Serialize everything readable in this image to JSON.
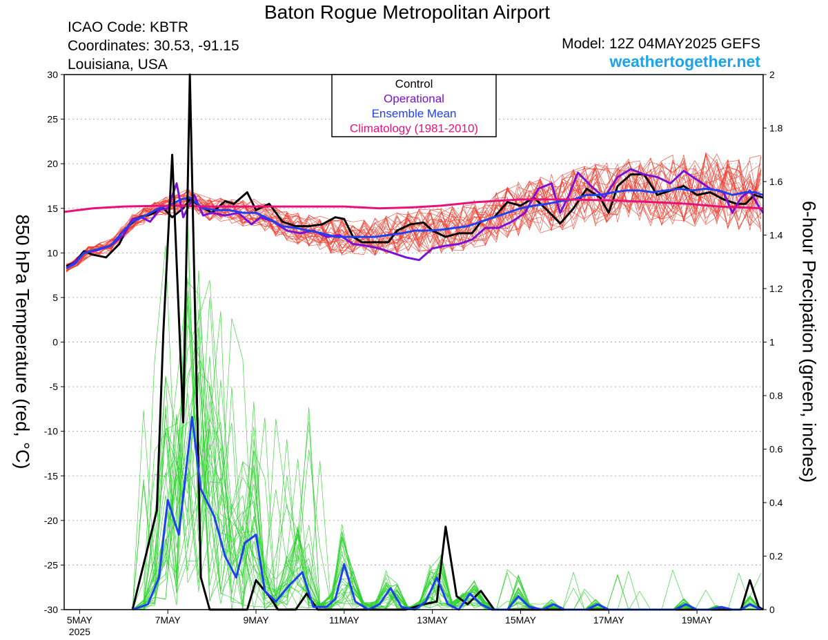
{
  "title": "Baton Rogue Metropolitan Airport",
  "station": {
    "icao": "ICAO Code: KBTR",
    "coords": "Coordinates: 30.53, -91.15",
    "region": "Louisiana, USA",
    "model": "Model: 12Z 04MAY2025 GEFS",
    "website": "weathertogether.net"
  },
  "colors": {
    "control": "#000000",
    "operational": "#7b10d6",
    "mean": "#1e40f0",
    "climatology": "#e8107a",
    "members_temp": "#f03a2a",
    "members_precip": "#2fd02f",
    "website": "#1aa3f0"
  },
  "chart_data": {
    "type": "line",
    "ylabel_left": "850 hPa Temperature (red, °C)",
    "ylabel_right": "6-hour Precipation (green, inches)",
    "ylim_left": [
      -30,
      30
    ],
    "ylim_right": [
      0,
      2
    ],
    "yticks_left": [
      "30",
      "25",
      "20",
      "15",
      "10",
      "5",
      "0",
      "-5",
      "-10",
      "-15",
      "-20",
      "-25",
      "-30"
    ],
    "yticks_right": [
      "2",
      "1.8",
      "1.6",
      "1.4",
      "1.2",
      "1",
      "0.8",
      "0.6",
      "0.4",
      "0.2",
      "0"
    ],
    "x_range_days": [
      4.65,
      20.5
    ],
    "x_ticks": [
      {
        "day": 5,
        "label": "5MAY",
        "sub": "2025"
      },
      {
        "day": 7,
        "label": "7MAY"
      },
      {
        "day": 9,
        "label": "9MAY"
      },
      {
        "day": 11,
        "label": "11MAY"
      },
      {
        "day": 13,
        "label": "13MAY"
      },
      {
        "day": 15,
        "label": "15MAY"
      },
      {
        "day": 17,
        "label": "17MAY"
      },
      {
        "day": 19,
        "label": "19MAY"
      }
    ],
    "legend": [
      "Control",
      "Operational",
      "Ensemble Mean",
      "Climatology (1981-2010)"
    ],
    "series": [
      {
        "name": "Control",
        "kind": "temperature",
        "points": [
          [
            4.7,
            8.5
          ],
          [
            4.9,
            9
          ],
          [
            5.1,
            10.2
          ],
          [
            5.3,
            9.8
          ],
          [
            5.6,
            9.5
          ],
          [
            5.9,
            11
          ],
          [
            6.1,
            13
          ],
          [
            6.35,
            14
          ],
          [
            6.6,
            14.3
          ],
          [
            6.9,
            15
          ],
          [
            7.1,
            14
          ],
          [
            7.35,
            15
          ],
          [
            7.5,
            16
          ],
          [
            7.75,
            15.2
          ],
          [
            8.0,
            14.5
          ],
          [
            8.3,
            15.8
          ],
          [
            8.5,
            15.5
          ],
          [
            8.8,
            16.8
          ],
          [
            9.0,
            14.8
          ],
          [
            9.3,
            15.5
          ],
          [
            9.6,
            13.5
          ],
          [
            9.9,
            13
          ],
          [
            10.2,
            13
          ],
          [
            10.5,
            13.2
          ],
          [
            10.8,
            14
          ],
          [
            11.0,
            13.8
          ],
          [
            11.2,
            11.8
          ],
          [
            11.4,
            11.2
          ],
          [
            11.7,
            11.2
          ],
          [
            12.0,
            11.2
          ],
          [
            12.2,
            12.5
          ],
          [
            12.5,
            13.2
          ],
          [
            12.8,
            13.4
          ],
          [
            13.0,
            12.5
          ],
          [
            13.3,
            11.8
          ],
          [
            13.6,
            12.2
          ],
          [
            13.9,
            12.2
          ],
          [
            14.1,
            13.5
          ],
          [
            14.4,
            14
          ],
          [
            14.7,
            15.7
          ],
          [
            15.0,
            15.3
          ],
          [
            15.3,
            16.2
          ],
          [
            15.6,
            14.8
          ],
          [
            15.9,
            13.3
          ],
          [
            16.2,
            15
          ],
          [
            16.5,
            17.2
          ],
          [
            16.8,
            16.2
          ],
          [
            17.0,
            14.5
          ],
          [
            17.2,
            17.5
          ],
          [
            17.5,
            18.8
          ],
          [
            17.8,
            18.8
          ],
          [
            18.1,
            16.5
          ],
          [
            18.4,
            17
          ],
          [
            18.7,
            17.5
          ],
          [
            19.0,
            16.5
          ],
          [
            19.3,
            16.8
          ],
          [
            19.6,
            16
          ],
          [
            19.9,
            15.5
          ],
          [
            20.1,
            15.5
          ],
          [
            20.3,
            16.5
          ],
          [
            20.5,
            16.2
          ]
        ]
      },
      {
        "name": "Operational",
        "kind": "temperature",
        "points": [
          [
            4.7,
            8.3
          ],
          [
            4.9,
            9
          ],
          [
            5.1,
            10
          ],
          [
            5.4,
            10.3
          ],
          [
            5.7,
            10.8
          ],
          [
            6.0,
            12
          ],
          [
            6.2,
            13.8
          ],
          [
            6.4,
            14
          ],
          [
            6.6,
            13.5
          ],
          [
            6.8,
            14.8
          ],
          [
            7.0,
            15
          ],
          [
            7.2,
            17.8
          ],
          [
            7.35,
            14
          ],
          [
            7.6,
            16.5
          ],
          [
            7.8,
            14.2
          ],
          [
            8.0,
            14.5
          ],
          [
            8.3,
            14.2
          ],
          [
            8.6,
            14.5
          ],
          [
            8.9,
            13.2
          ],
          [
            9.1,
            14
          ],
          [
            9.4,
            13.5
          ],
          [
            9.7,
            12.5
          ],
          [
            10.0,
            12.2
          ],
          [
            10.3,
            12.5
          ],
          [
            10.6,
            11.8
          ],
          [
            10.9,
            12
          ],
          [
            11.2,
            11
          ],
          [
            11.5,
            10.8
          ],
          [
            11.8,
            10.5
          ],
          [
            12.1,
            10
          ],
          [
            12.4,
            9.5
          ],
          [
            12.7,
            9.2
          ],
          [
            13.0,
            10.5
          ],
          [
            13.3,
            10.8
          ],
          [
            13.6,
            11
          ],
          [
            13.9,
            11.5
          ],
          [
            14.2,
            12.8
          ],
          [
            14.5,
            12.8
          ],
          [
            14.8,
            13.5
          ],
          [
            15.1,
            14.5
          ],
          [
            15.4,
            17.2
          ],
          [
            15.7,
            17.8
          ],
          [
            15.9,
            14.5
          ],
          [
            16.1,
            16.5
          ],
          [
            16.3,
            19
          ],
          [
            16.6,
            17.5
          ],
          [
            16.9,
            16.2
          ],
          [
            17.2,
            18.5
          ],
          [
            17.5,
            19.4
          ],
          [
            17.8,
            18.8
          ],
          [
            18.1,
            18.5
          ],
          [
            18.4,
            17.8
          ],
          [
            18.7,
            19.2
          ],
          [
            19.0,
            18.2
          ],
          [
            19.3,
            17.2
          ],
          [
            19.6,
            16.8
          ],
          [
            19.8,
            14.5
          ],
          [
            20.0,
            16.2
          ],
          [
            20.2,
            17
          ],
          [
            20.4,
            15.2
          ],
          [
            20.5,
            14.5
          ]
        ]
      },
      {
        "name": "Ensemble Mean",
        "kind": "temperature",
        "points": [
          [
            4.7,
            8.3
          ],
          [
            4.9,
            8.8
          ],
          [
            5.1,
            10
          ],
          [
            5.4,
            10.4
          ],
          [
            5.7,
            10.8
          ],
          [
            6.0,
            12.5
          ],
          [
            6.2,
            13.5
          ],
          [
            6.5,
            14.2
          ],
          [
            6.8,
            15
          ],
          [
            7.1,
            15.5
          ],
          [
            7.3,
            16
          ],
          [
            7.5,
            16.2
          ],
          [
            7.8,
            15
          ],
          [
            8.1,
            14.8
          ],
          [
            8.4,
            14.8
          ],
          [
            8.7,
            14.5
          ],
          [
            9.0,
            14.5
          ],
          [
            9.3,
            13.8
          ],
          [
            9.6,
            13
          ],
          [
            9.9,
            12.8
          ],
          [
            10.2,
            12.5
          ],
          [
            10.5,
            12.2
          ],
          [
            10.8,
            11.8
          ],
          [
            11.1,
            11.8
          ],
          [
            11.4,
            11.8
          ],
          [
            11.7,
            11.8
          ],
          [
            12.0,
            12
          ],
          [
            12.3,
            12.2
          ],
          [
            12.6,
            12.5
          ],
          [
            12.9,
            12.5
          ],
          [
            13.2,
            12.6
          ],
          [
            13.5,
            12.8
          ],
          [
            13.8,
            13
          ],
          [
            14.1,
            13.5
          ],
          [
            14.4,
            14
          ],
          [
            14.7,
            14.5
          ],
          [
            15.0,
            15
          ],
          [
            15.3,
            15.3
          ],
          [
            15.6,
            15.5
          ],
          [
            15.9,
            15.8
          ],
          [
            16.2,
            16
          ],
          [
            16.5,
            16.5
          ],
          [
            16.8,
            16.5
          ],
          [
            17.1,
            16.8
          ],
          [
            17.4,
            17
          ],
          [
            17.7,
            17
          ],
          [
            18.0,
            16.8
          ],
          [
            18.3,
            17
          ],
          [
            18.6,
            17.2
          ],
          [
            18.9,
            17
          ],
          [
            19.2,
            17.2
          ],
          [
            19.5,
            17
          ],
          [
            19.8,
            16.5
          ],
          [
            20.1,
            16.8
          ],
          [
            20.3,
            16.8
          ],
          [
            20.5,
            16.5
          ]
        ]
      },
      {
        "name": "Climatology (1981-2010)",
        "kind": "temperature",
        "points": [
          [
            4.65,
            14.6
          ],
          [
            5.3,
            15
          ],
          [
            6.0,
            15.2
          ],
          [
            7.0,
            15.3
          ],
          [
            8.0,
            15.2
          ],
          [
            9.0,
            15.2
          ],
          [
            10.0,
            15.2
          ],
          [
            11.0,
            15.2
          ],
          [
            11.8,
            15
          ],
          [
            12.5,
            15.1
          ],
          [
            13.2,
            15.3
          ],
          [
            14.0,
            15.7
          ],
          [
            15.0,
            16
          ],
          [
            16.0,
            16
          ],
          [
            17.0,
            15.9
          ],
          [
            18.0,
            15.7
          ],
          [
            18.8,
            15.5
          ],
          [
            19.5,
            15.2
          ],
          [
            20.5,
            15
          ]
        ]
      },
      {
        "name": "Control",
        "kind": "precipitation",
        "points": [
          [
            6.2,
            0
          ],
          [
            6.75,
            0.37
          ],
          [
            6.9,
            1.04
          ],
          [
            7.1,
            1.7
          ],
          [
            7.35,
            0.7
          ],
          [
            7.5,
            2.0
          ],
          [
            7.75,
            0.12
          ],
          [
            7.95,
            0
          ],
          [
            8.8,
            0
          ],
          [
            9.0,
            0.11
          ],
          [
            9.3,
            0.05
          ],
          [
            9.5,
            0
          ],
          [
            9.9,
            0
          ],
          [
            10.15,
            0.06
          ],
          [
            10.4,
            0
          ],
          [
            11.2,
            0
          ],
          [
            12.4,
            0
          ],
          [
            12.8,
            0.02
          ],
          [
            13.1,
            0.03
          ],
          [
            13.3,
            0.31
          ],
          [
            13.55,
            0.05
          ],
          [
            13.8,
            0.02
          ],
          [
            14.1,
            0.07
          ],
          [
            14.4,
            0
          ],
          [
            15.3,
            0
          ],
          [
            19.8,
            0
          ],
          [
            20.0,
            0
          ],
          [
            20.2,
            0.11
          ],
          [
            20.4,
            0.01
          ],
          [
            20.5,
            0
          ]
        ]
      },
      {
        "name": "Ensemble Mean",
        "kind": "precipitation",
        "points": [
          [
            6.2,
            0
          ],
          [
            6.55,
            0.02
          ],
          [
            6.8,
            0.12
          ],
          [
            7.0,
            0.41
          ],
          [
            7.25,
            0.28
          ],
          [
            7.55,
            0.72
          ],
          [
            7.75,
            0.45
          ],
          [
            8.05,
            0.35
          ],
          [
            8.3,
            0.2
          ],
          [
            8.55,
            0.12
          ],
          [
            8.75,
            0.25
          ],
          [
            9.0,
            0.28
          ],
          [
            9.2,
            0.07
          ],
          [
            9.45,
            0.03
          ],
          [
            9.75,
            0.09
          ],
          [
            10.05,
            0.14
          ],
          [
            10.3,
            0.01
          ],
          [
            10.6,
            0.01
          ],
          [
            10.8,
            0.04
          ],
          [
            11.0,
            0.17
          ],
          [
            11.25,
            0.03
          ],
          [
            11.55,
            0.0
          ],
          [
            11.8,
            0.02
          ],
          [
            12.05,
            0.08
          ],
          [
            12.3,
            0.01
          ],
          [
            12.6,
            0.0
          ],
          [
            12.85,
            0.03
          ],
          [
            13.1,
            0.12
          ],
          [
            13.35,
            0.02
          ],
          [
            13.6,
            0.0
          ],
          [
            13.85,
            0.06
          ],
          [
            14.1,
            0.02
          ],
          [
            14.35,
            0.0
          ],
          [
            14.7,
            0.0
          ],
          [
            14.95,
            0.05
          ],
          [
            15.2,
            0.01
          ],
          [
            15.5,
            0.0
          ],
          [
            15.75,
            0.02
          ],
          [
            16.0,
            0.0
          ],
          [
            16.5,
            0.0
          ],
          [
            16.75,
            0.02
          ],
          [
            17.0,
            0.0
          ],
          [
            17.5,
            0.0
          ],
          [
            18.5,
            0.0
          ],
          [
            18.75,
            0.02
          ],
          [
            19.0,
            0.0
          ],
          [
            19.3,
            0.0
          ],
          [
            19.55,
            0.01
          ],
          [
            19.8,
            0.0
          ],
          [
            20.0,
            0.0
          ],
          [
            20.2,
            0.02
          ],
          [
            20.45,
            0.0
          ]
        ]
      }
    ]
  }
}
